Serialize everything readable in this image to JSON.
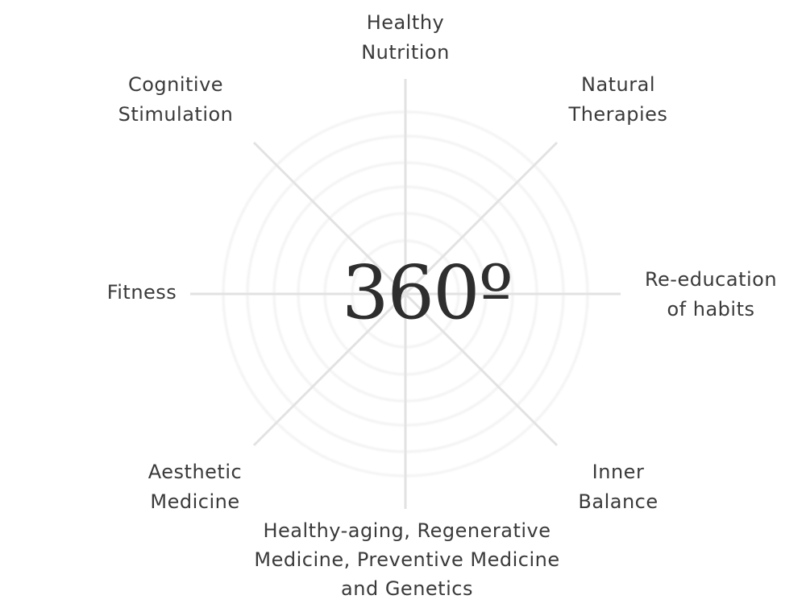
{
  "center": {
    "text": "360º"
  },
  "segments": [
    {
      "id": "healthy-nutrition",
      "label": "Healthy\nNutrition"
    },
    {
      "id": "natural-therapies",
      "label": "Natural\nTherapies"
    },
    {
      "id": "re-education-of-habits",
      "label": "Re-education\nof habits"
    },
    {
      "id": "inner-balance",
      "label": "Inner\nBalance"
    },
    {
      "id": "healthy-aging",
      "label": "Healthy-aging, Regenerative\nMedicine, Preventive Medicine\nand Genetics"
    },
    {
      "id": "aesthetic-medicine",
      "label": "Aesthetic\nMedicine"
    },
    {
      "id": "fitness",
      "label": "Fitness"
    },
    {
      "id": "cognitive-stimulation",
      "label": "Cognitive\nStimulation"
    }
  ],
  "colors": {
    "text": "#3a3a3a",
    "rings": "#ececec",
    "spokes": "#e2e2e2",
    "background": "#ffffff"
  }
}
